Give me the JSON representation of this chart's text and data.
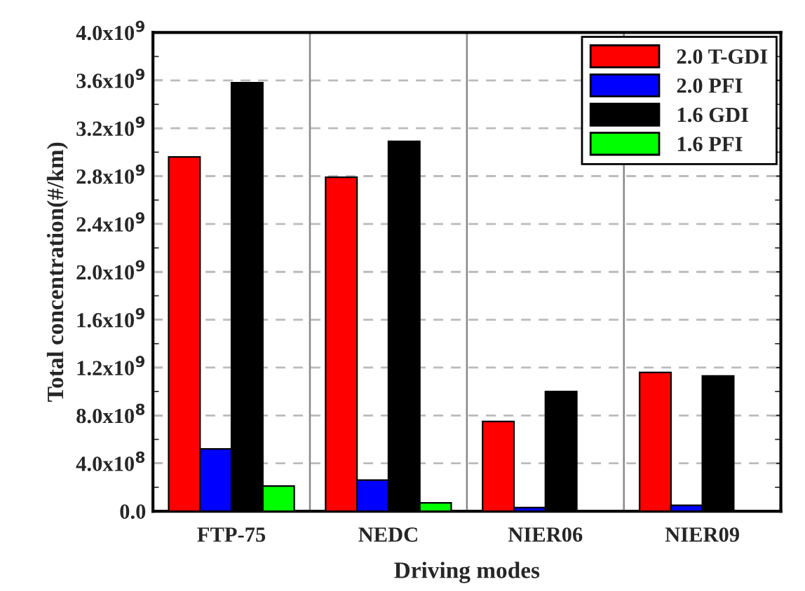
{
  "chart_data": {
    "type": "bar",
    "xlabel": "Driving modes",
    "ylabel": "Total concentration(#/km)",
    "categories": [
      "FTP-75",
      "NEDC",
      "NIER06",
      "NIER09"
    ],
    "series": [
      {
        "name": "2.0 T-GDI",
        "color": "#ff0000",
        "values": [
          2960000000.0,
          2790000000.0,
          750000000.0,
          1160000000.0
        ]
      },
      {
        "name": "2.0 PFI",
        "color": "#0000ff",
        "values": [
          520000000.0,
          260000000.0,
          30000000.0,
          50000000.0
        ]
      },
      {
        "name": "1.6 GDI",
        "color": "#000000",
        "values": [
          3580000000.0,
          3090000000.0,
          1000000000.0,
          1130000000.0
        ]
      },
      {
        "name": "1.6 PFI",
        "color": "#00ff00",
        "values": [
          210000000.0,
          70000000.0,
          null,
          null
        ]
      }
    ],
    "ylim": [
      0,
      4000000000.0
    ],
    "yticks": [
      {
        "value": 0,
        "label": "0.0"
      },
      {
        "value": 400000000.0,
        "label": "4.0x10$^{8}$"
      },
      {
        "value": 800000000.0,
        "label": "8.0x10$^{8}$"
      },
      {
        "value": 1200000000.0,
        "label": "1.2x10$^{9}$"
      },
      {
        "value": 1600000000.0,
        "label": "1.6x10$^{9}$"
      },
      {
        "value": 2000000000.0,
        "label": "2.0x10$^{9}$"
      },
      {
        "value": 2400000000.0,
        "label": "2.4x10$^{9}$"
      },
      {
        "value": 2800000000.0,
        "label": "2.8x10$^{9}$"
      },
      {
        "value": 3200000000.0,
        "label": "3.2x10$^{9}$"
      },
      {
        "value": 3600000000.0,
        "label": "3.6x10$^{9}$"
      },
      {
        "value": 4000000000.0,
        "label": "4.0x10$^{9}$"
      }
    ],
    "grid": true,
    "legend": "top right"
  }
}
